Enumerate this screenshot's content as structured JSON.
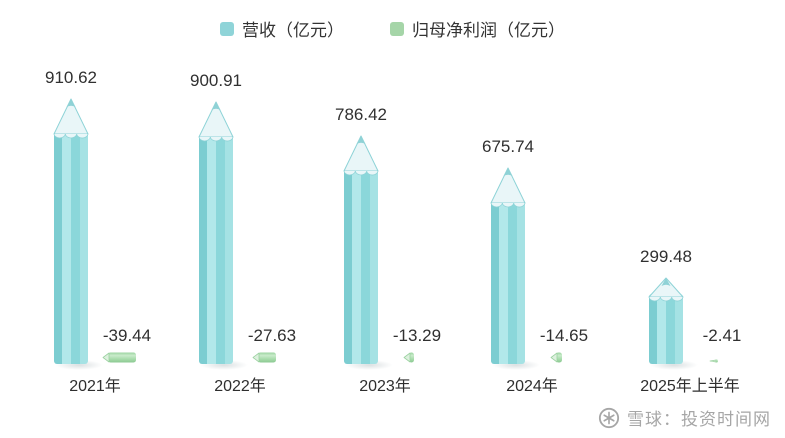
{
  "chart_data": {
    "type": "bar",
    "title": "",
    "categories": [
      "2021年",
      "2022年",
      "2023年",
      "2024年",
      "2025年上半年"
    ],
    "series": [
      {
        "name": "营收（亿元）",
        "color": "#8fd4d8",
        "values": [
          910.62,
          900.91,
          786.42,
          675.74,
          299.48
        ]
      },
      {
        "name": "归母净利润（亿元）",
        "color": "#a5d5a8",
        "values": [
          -39.44,
          -27.63,
          -13.29,
          -14.65,
          -2.41
        ]
      }
    ],
    "value_labels_shown": true,
    "legend_position": "top",
    "grid": false,
    "baseline": 0,
    "bar_style": "pencil"
  },
  "watermark": {
    "text": "雪球：投资时间网"
  }
}
